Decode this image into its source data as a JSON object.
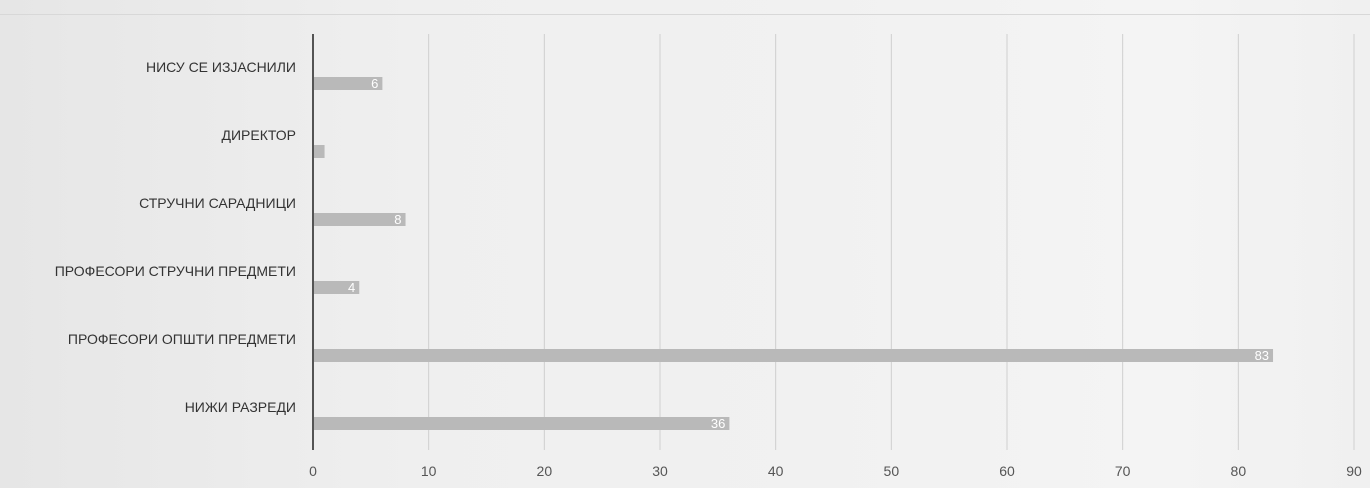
{
  "chart_data": {
    "type": "bar",
    "orientation": "horizontal",
    "categories": [
      "НИСУ СЕ ИЗЈАСНИЛИ",
      "ДИРЕКТОР",
      "СТРУЧНИ САРАДНИЦИ",
      "ПРОФЕСОРИ СТРУЧНИ ПРЕДМЕТИ",
      "ПРОФЕСОРИ ОПШТИ ПРЕДМЕТИ",
      "НИЖИ РАЗРЕДИ"
    ],
    "values": [
      6,
      1,
      8,
      4,
      83,
      36
    ],
    "data_labels": [
      "6",
      "",
      "8",
      "4",
      "83",
      "36"
    ],
    "xlim": [
      0,
      90
    ],
    "xticks": [
      "0",
      "10",
      "20",
      "30",
      "40",
      "50",
      "60",
      "70",
      "80",
      "90"
    ],
    "grid": "vertical",
    "title": "",
    "xlabel": "",
    "ylabel": "",
    "colors": {
      "bar": "#b9b9b9",
      "axis": "#222222",
      "grid": "#cfcfcf",
      "data_label": "#ffffff"
    }
  }
}
